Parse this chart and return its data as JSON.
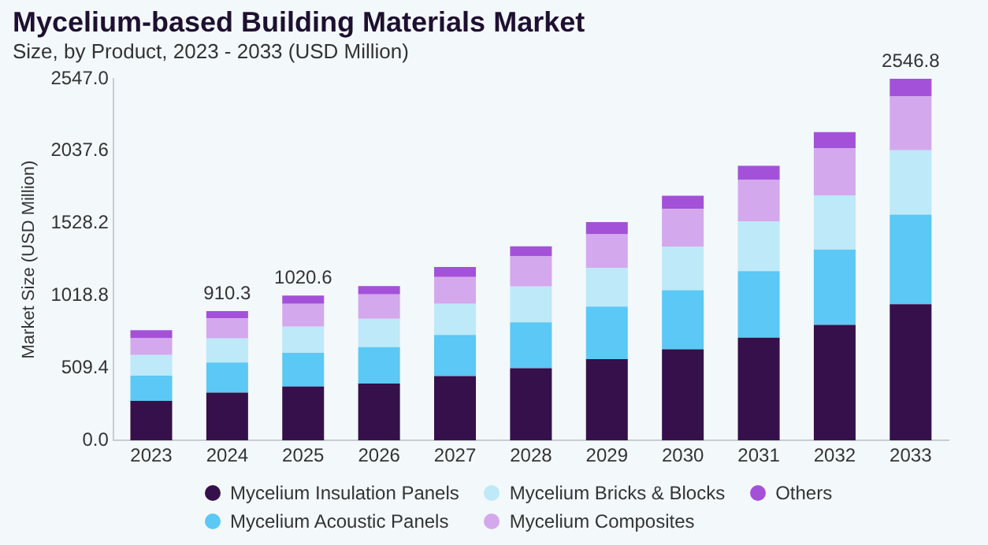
{
  "chart_data": {
    "type": "bar",
    "title": "Mycelium-based Building Materials Market",
    "subtitle": "Size, by Product, 2023 - 2033 (USD Million)",
    "ylabel": "Market Size (USD Million)",
    "categories": [
      "2023",
      "2024",
      "2025",
      "2026",
      "2027",
      "2028",
      "2029",
      "2030",
      "2031",
      "2032",
      "2033"
    ],
    "stacked": true,
    "series": [
      {
        "name": "Mycelium Insulation Panels",
        "color": "#35104a",
        "values": [
          278,
          337.2,
          379.2,
          401,
          453,
          509,
          572,
          642,
          724,
          813,
          959.3
        ]
      },
      {
        "name": "Mycelium Acoustic Panels",
        "color": "#5bc8f5",
        "values": [
          178,
          211.5,
          238.0,
          256,
          290,
          323,
          371,
          416,
          468,
          531,
          631.5
        ]
      },
      {
        "name": "Mycelium Bricks & Blocks",
        "color": "#bde9f9",
        "values": [
          145,
          169.1,
          184.3,
          200,
          219,
          252,
          271,
          308,
          349,
          382,
          452.8
        ]
      },
      {
        "name": "Mycelium Composites",
        "color": "#d4a8ec",
        "values": [
          119,
          141.6,
          160.1,
          171,
          189,
          212,
          238,
          264,
          293,
          330,
          378.3
        ]
      },
      {
        "name": "Others",
        "color": "#a451d9",
        "values": [
          56,
          50.9,
          59.0,
          59,
          71,
          71,
          85,
          93,
          100,
          115,
          124.9
        ]
      }
    ],
    "totals": [
      null,
      "910.3",
      "1020.6",
      null,
      null,
      null,
      null,
      null,
      null,
      null,
      "2546.8"
    ],
    "ylim": [
      0,
      2547.0
    ],
    "yticks": [
      {
        "value": 0,
        "label": "0.0"
      },
      509.4,
      1018.8,
      1528.2,
      2037.6,
      {
        "value": 2547.0,
        "label": "2547.0"
      }
    ],
    "grid": false,
    "legend": "bottom"
  }
}
